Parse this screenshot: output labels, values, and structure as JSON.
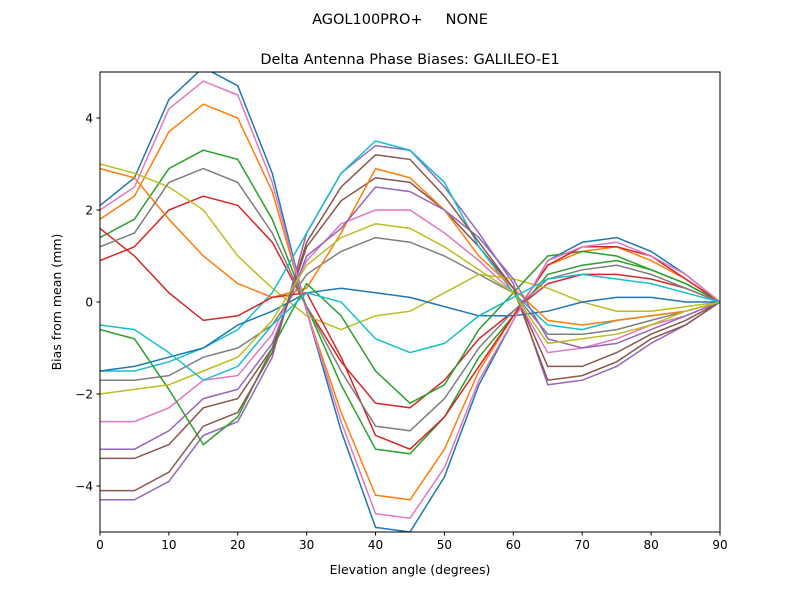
{
  "chart_data": {
    "type": "line",
    "suptitle": "AGOL100PRO+     NONE",
    "title": "Delta Antenna Phase Biases: GALILEO-E1",
    "xlabel": "Elevation angle (degrees)",
    "ylabel": "Bias from mean (mm)",
    "xlim": [
      0,
      90
    ],
    "ylim": [
      -5,
      5
    ],
    "xticks": [
      0,
      10,
      20,
      30,
      40,
      50,
      60,
      70,
      80,
      90
    ],
    "yticks": [
      -4,
      -2,
      0,
      2,
      4
    ],
    "grid": false,
    "x": [
      0,
      5,
      10,
      15,
      20,
      25,
      30,
      35,
      40,
      45,
      50,
      55,
      60,
      65,
      70,
      75,
      80,
      85,
      90
    ],
    "colors": [
      "#1f77b4",
      "#ff7f0e",
      "#2ca02c",
      "#d62728",
      "#9467bd",
      "#8c564b",
      "#e377c2",
      "#7f7f7f",
      "#bcbd22",
      "#17becf"
    ],
    "series": [
      {
        "values": [
          2.1,
          2.7,
          4.4,
          5.1,
          4.7,
          2.8,
          -0.2,
          -2.8,
          -4.9,
          -5.0,
          -3.8,
          -1.8,
          -0.4,
          0.9,
          1.3,
          1.4,
          1.1,
          0.6,
          0
        ]
      },
      {
        "values": [
          1.8,
          2.3,
          3.7,
          4.3,
          4.0,
          2.4,
          -0.2,
          -2.4,
          -4.2,
          -4.3,
          -3.2,
          -1.5,
          -0.3,
          0.8,
          1.1,
          1.2,
          0.9,
          0.5,
          0
        ]
      },
      {
        "values": [
          1.4,
          1.8,
          2.9,
          3.3,
          3.1,
          1.8,
          -0.1,
          -1.8,
          -3.2,
          -3.3,
          -2.5,
          -1.2,
          -0.3,
          0.6,
          0.8,
          0.9,
          0.7,
          0.4,
          0
        ]
      },
      {
        "values": [
          0.9,
          1.2,
          2.0,
          2.3,
          2.1,
          1.3,
          -0.1,
          -1.3,
          -2.2,
          -2.3,
          -1.7,
          -0.8,
          -0.2,
          0.4,
          0.6,
          0.6,
          0.5,
          0.3,
          0
        ]
      },
      {
        "values": [
          -4.3,
          -4.3,
          -3.9,
          -2.9,
          -2.6,
          -1.2,
          1.5,
          2.8,
          3.4,
          3.3,
          2.5,
          1.5,
          0.4,
          -1.8,
          -1.7,
          -1.4,
          -0.9,
          -0.5,
          0
        ]
      },
      {
        "values": [
          -3.4,
          -3.4,
          -3.1,
          -2.3,
          -2.1,
          -1.0,
          1.2,
          2.2,
          2.7,
          2.6,
          2.0,
          1.2,
          0.3,
          -1.4,
          -1.4,
          -1.1,
          -0.7,
          -0.4,
          0
        ]
      },
      {
        "values": [
          -2.6,
          -2.6,
          -2.3,
          -1.7,
          -1.6,
          -0.7,
          0.9,
          1.7,
          2.0,
          2.0,
          1.5,
          0.9,
          0.2,
          -1.1,
          -1.0,
          -0.8,
          -0.5,
          -0.3,
          0
        ]
      },
      {
        "values": [
          -1.7,
          -1.7,
          -1.6,
          -1.2,
          -1.0,
          -0.5,
          0.6,
          1.1,
          1.4,
          1.3,
          1.0,
          0.6,
          0.2,
          -0.7,
          -0.7,
          -0.6,
          -0.4,
          -0.2,
          0
        ]
      },
      {
        "values": [
          3.0,
          2.8,
          2.5,
          2.0,
          1.0,
          0.3,
          -0.3,
          -0.6,
          -0.3,
          -0.2,
          0.2,
          0.6,
          0.5,
          0.3,
          0.0,
          -0.2,
          -0.2,
          -0.1,
          0
        ]
      },
      {
        "values": [
          -1.5,
          -1.5,
          -1.3,
          -1.0,
          -0.6,
          0.2,
          1.5,
          2.8,
          3.5,
          3.3,
          2.6,
          1.2,
          0.2,
          -0.5,
          -0.6,
          -0.4,
          -0.3,
          -0.2,
          0
        ]
      },
      {
        "values": [
          -1.5,
          -1.4,
          -1.2,
          -1.0,
          -0.5,
          -0.2,
          0.2,
          0.3,
          0.2,
          0.1,
          -0.1,
          -0.3,
          -0.3,
          -0.2,
          0.0,
          0.1,
          0.1,
          0.0,
          0
        ]
      },
      {
        "values": [
          2.9,
          2.7,
          1.8,
          1.0,
          0.4,
          0.1,
          0.3,
          1.5,
          2.9,
          2.7,
          2.0,
          1.0,
          0.3,
          -0.4,
          -0.5,
          -0.4,
          -0.3,
          -0.2,
          0
        ]
      },
      {
        "values": [
          -0.6,
          -0.8,
          -1.9,
          -3.1,
          -2.5,
          -1.0,
          0.4,
          -0.3,
          -1.5,
          -2.2,
          -1.8,
          -0.6,
          0.2,
          1.0,
          1.1,
          1.0,
          0.7,
          0.4,
          0
        ]
      },
      {
        "values": [
          1.6,
          1.0,
          0.2,
          -0.4,
          -0.3,
          0.1,
          0.2,
          -1.2,
          -2.9,
          -3.2,
          -2.5,
          -1.4,
          -0.3,
          0.8,
          1.2,
          1.2,
          1.0,
          0.5,
          0
        ]
      },
      {
        "values": [
          -3.2,
          -3.2,
          -2.8,
          -2.1,
          -1.9,
          -0.9,
          1.0,
          1.6,
          2.5,
          2.4,
          2.0,
          1.4,
          0.5,
          -0.8,
          -1.0,
          -0.9,
          -0.6,
          -0.3,
          0
        ]
      },
      {
        "values": [
          -4.1,
          -4.1,
          -3.7,
          -2.7,
          -2.4,
          -1.1,
          1.3,
          2.5,
          3.2,
          3.1,
          2.3,
          1.3,
          0.3,
          -1.7,
          -1.6,
          -1.3,
          -0.8,
          -0.5,
          0
        ]
      },
      {
        "values": [
          2.0,
          2.5,
          4.2,
          4.8,
          4.5,
          2.6,
          -0.2,
          -2.6,
          -4.6,
          -4.7,
          -3.6,
          -1.7,
          -0.4,
          0.9,
          1.2,
          1.3,
          1.0,
          0.6,
          0
        ]
      },
      {
        "values": [
          1.2,
          1.5,
          2.6,
          2.9,
          2.6,
          1.5,
          -0.1,
          -1.5,
          -2.7,
          -2.8,
          -2.1,
          -1.0,
          -0.2,
          0.5,
          0.7,
          0.8,
          0.6,
          0.3,
          0
        ]
      },
      {
        "values": [
          -2.0,
          -1.9,
          -1.8,
          -1.5,
          -1.2,
          -0.4,
          0.8,
          1.4,
          1.7,
          1.6,
          1.2,
          0.7,
          0.2,
          -0.9,
          -0.8,
          -0.7,
          -0.5,
          -0.2,
          0
        ]
      },
      {
        "values": [
          -0.5,
          -0.6,
          -1.1,
          -1.7,
          -1.4,
          -0.5,
          0.2,
          0.0,
          -0.8,
          -1.1,
          -0.9,
          -0.3,
          0.1,
          0.5,
          0.6,
          0.5,
          0.4,
          0.2,
          0
        ]
      }
    ]
  }
}
